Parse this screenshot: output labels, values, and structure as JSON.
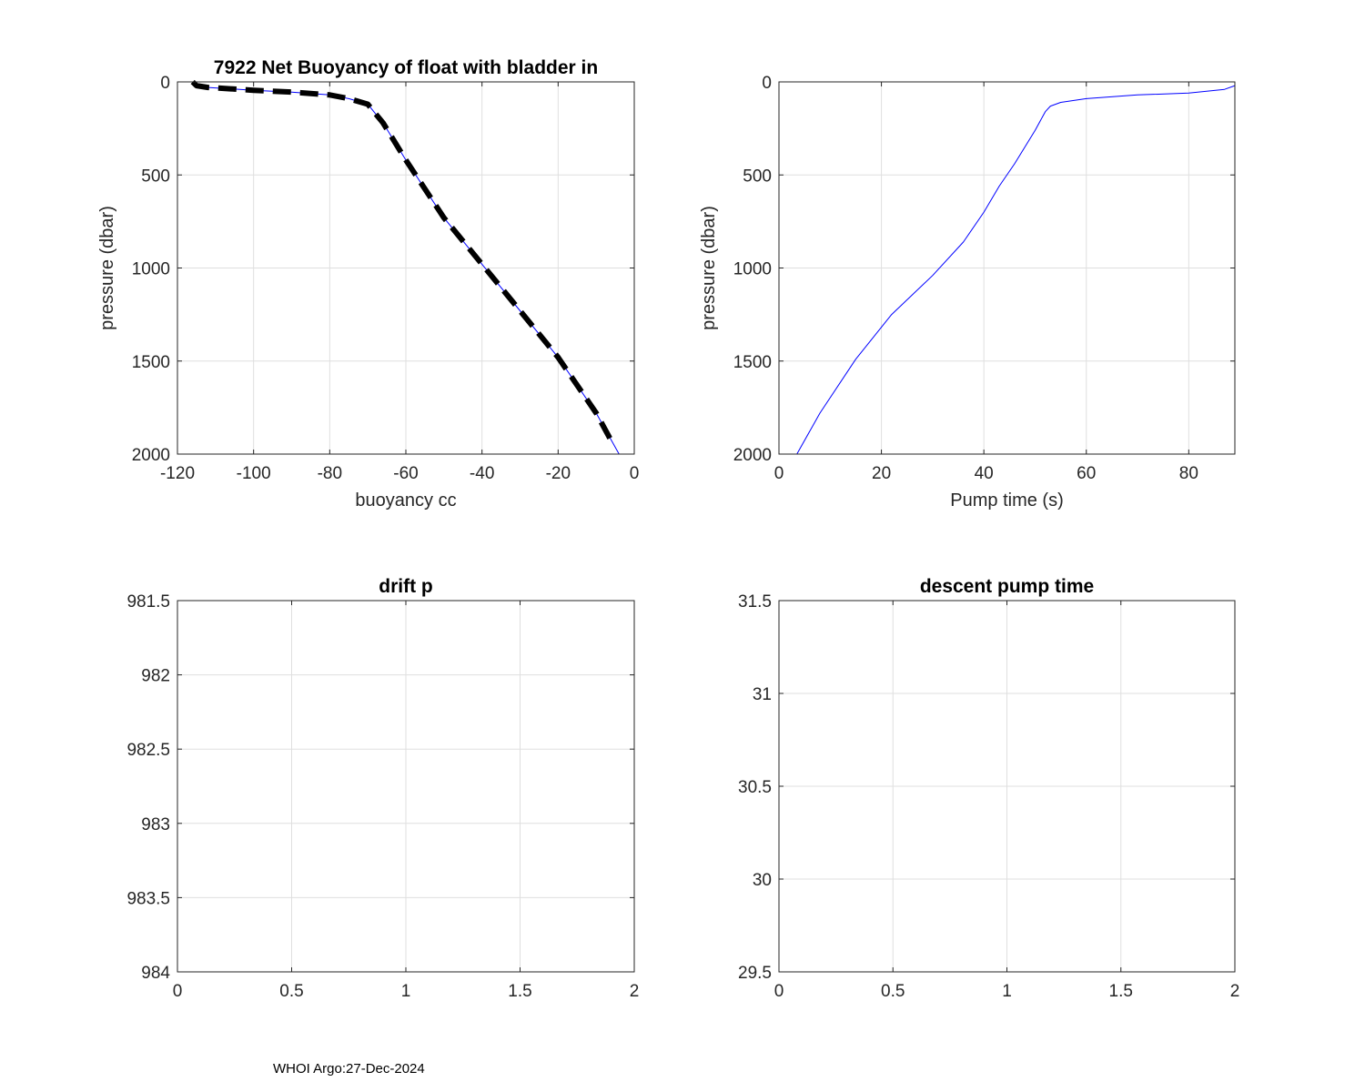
{
  "footer_text": "WHOI Argo:27-Dec-2024",
  "chart_data": [
    {
      "type": "line",
      "title": "7922 Net Buoyancy of float with bladder in",
      "xlabel": "buoyancy cc",
      "ylabel": "pressure (dbar)",
      "xlim": [
        -120,
        0
      ],
      "ylim": [
        0,
        2000
      ],
      "y_reversed": true,
      "grid": true,
      "xticks": [
        "-120",
        "-100",
        "-80",
        "-60",
        "-40",
        "-20",
        "0"
      ],
      "yticks": [
        "0",
        "500",
        "1000",
        "1500",
        "2000"
      ],
      "series": [
        {
          "style": "solid-thin",
          "color": "#0000ff",
          "x": [
            -116,
            -115,
            -112,
            -100,
            -90,
            -80,
            -75,
            -70,
            -68,
            -66,
            -60,
            -50,
            -40,
            -30,
            -20,
            -10,
            -4
          ],
          "y": [
            0,
            20,
            30,
            45,
            55,
            70,
            90,
            120,
            170,
            220,
            420,
            730,
            980,
            1230,
            1480,
            1780,
            2000
          ]
        },
        {
          "style": "dashed-thick",
          "color": "#000000",
          "x": [
            -116,
            -115,
            -112,
            -100,
            -90,
            -80,
            -75,
            -70,
            -68,
            -66,
            -60,
            -50,
            -40,
            -30,
            -20,
            -10,
            -6
          ],
          "y": [
            0,
            20,
            30,
            45,
            55,
            70,
            90,
            120,
            170,
            220,
            420,
            730,
            980,
            1230,
            1480,
            1780,
            1930
          ]
        }
      ]
    },
    {
      "type": "line",
      "title": "",
      "xlabel": "Pump time (s)",
      "ylabel": "pressure (dbar)",
      "xlim": [
        0,
        89
      ],
      "ylim": [
        0,
        2000
      ],
      "y_reversed": true,
      "grid": true,
      "xticks": [
        "0",
        "20",
        "40",
        "60",
        "80"
      ],
      "yticks": [
        "0",
        "500",
        "1000",
        "1500",
        "2000"
      ],
      "series": [
        {
          "style": "solid-thin",
          "color": "#0000ff",
          "x": [
            3.5,
            8,
            15,
            22,
            30,
            36,
            40,
            43,
            46,
            50,
            52,
            53,
            55,
            60,
            70,
            80,
            87,
            89
          ],
          "y": [
            2000,
            1780,
            1490,
            1250,
            1040,
            860,
            700,
            560,
            440,
            260,
            160,
            130,
            110,
            90,
            70,
            60,
            40,
            20
          ]
        }
      ]
    },
    {
      "type": "line",
      "title": "drift p",
      "xlabel": "",
      "ylabel": "",
      "xlim": [
        0,
        2
      ],
      "ylim": [
        981.5,
        984
      ],
      "y_reversed": true,
      "grid": true,
      "xticks": [
        "0",
        "0.5",
        "1",
        "1.5",
        "2"
      ],
      "yticks": [
        "981.5",
        "982",
        "982.5",
        "983",
        "983.5",
        "984"
      ],
      "series": []
    },
    {
      "type": "line",
      "title": "descent pump time",
      "xlabel": "",
      "ylabel": "",
      "xlim": [
        0,
        2
      ],
      "ylim": [
        29.5,
        31.5
      ],
      "y_reversed": false,
      "grid": true,
      "xticks": [
        "0",
        "0.5",
        "1",
        "1.5",
        "2"
      ],
      "yticks": [
        "29.5",
        "30",
        "30.5",
        "31",
        "31.5"
      ],
      "series": []
    }
  ]
}
